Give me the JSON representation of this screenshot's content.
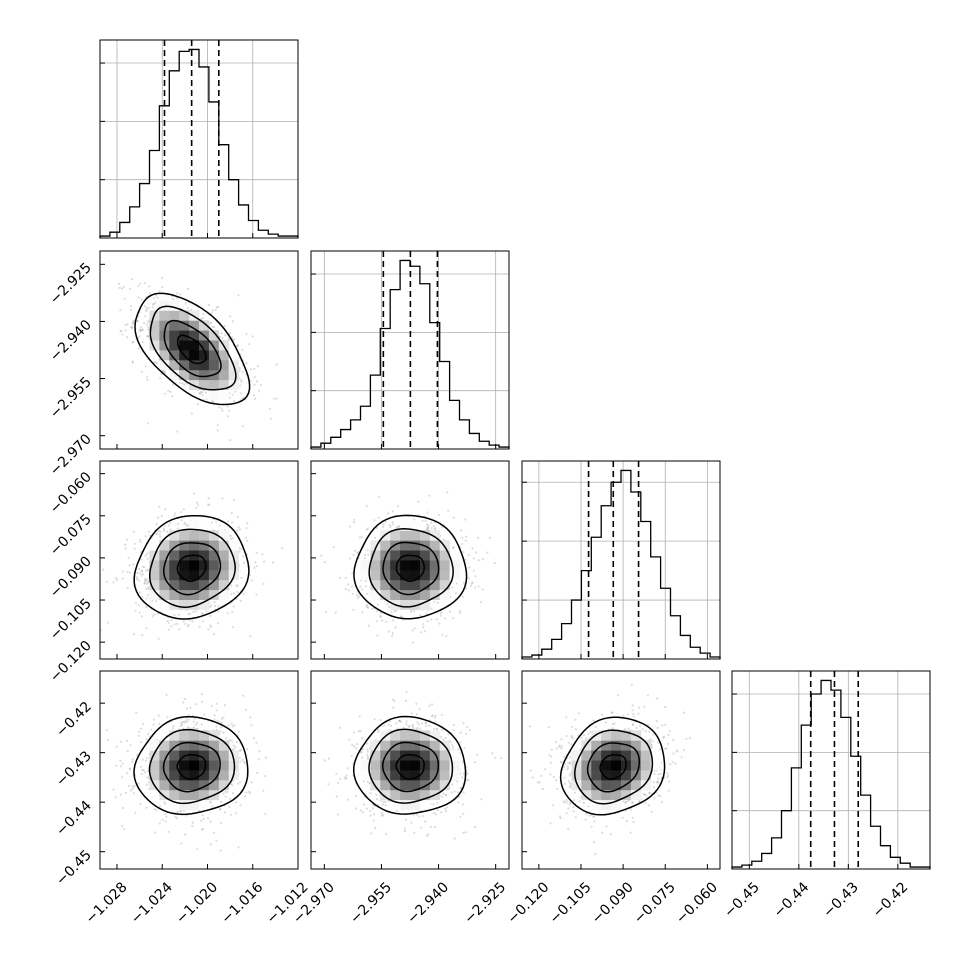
{
  "chart_data": {
    "type": "corner",
    "parameters": [
      {
        "axis_range": [
          -1.0295,
          -1.012
        ],
        "mean": -1.0214,
        "sd": 0.0025,
        "quantiles": [
          -1.0238,
          -1.0214,
          -1.019
        ],
        "ticks": [
          -1.028,
          -1.024,
          -1.02,
          -1.016,
          -1.012
        ],
        "tick_labels": [
          "−1.028",
          "−1.024",
          "−1.020",
          "−1.016",
          "−1.012"
        ],
        "hist_counts": [
          1,
          3,
          8,
          16,
          28,
          45,
          68,
          86,
          96,
          97,
          88,
          70,
          48,
          30,
          17,
          9,
          4,
          2,
          1,
          1
        ]
      },
      {
        "axis_range": [
          -2.9735,
          -2.9215
        ],
        "mean": -2.9474,
        "sd": 0.0073,
        "quantiles": [
          -2.9545,
          -2.9474,
          -2.9403
        ],
        "ticks": [
          -2.97,
          -2.955,
          -2.94,
          -2.925
        ],
        "tick_labels": [
          "−2.970",
          "−2.955",
          "−2.940",
          "−2.925"
        ],
        "hist_counts": [
          1,
          3,
          6,
          10,
          15,
          22,
          38,
          62,
          82,
          97,
          94,
          85,
          65,
          45,
          25,
          15,
          8,
          4,
          2,
          1
        ]
      },
      {
        "axis_range": [
          -0.126,
          -0.0555
        ],
        "mean": -0.0935,
        "sd": 0.0092,
        "quantiles": [
          -0.1023,
          -0.0935,
          -0.0845
        ],
        "ticks": [
          -0.12,
          -0.105,
          -0.09,
          -0.075,
          -0.06
        ],
        "tick_labels": [
          "−0.120",
          "−0.105",
          "−0.090",
          "−0.075",
          "−0.060"
        ],
        "hist_counts": [
          1,
          2,
          5,
          10,
          18,
          30,
          45,
          62,
          78,
          90,
          96,
          85,
          70,
          52,
          36,
          22,
          12,
          6,
          3,
          1
        ]
      },
      {
        "axis_range": [
          -0.4535,
          -0.4135
        ],
        "mean": -0.4328,
        "sd": 0.0049,
        "quantiles": [
          -0.4376,
          -0.4328,
          -0.428
        ],
        "ticks": [
          -0.45,
          -0.44,
          -0.43,
          -0.42
        ],
        "tick_labels": [
          "−0.45",
          "−0.44",
          "−0.43",
          "−0.42"
        ],
        "hist_counts": [
          1,
          2,
          4,
          8,
          16,
          30,
          52,
          74,
          90,
          97,
          92,
          78,
          58,
          38,
          22,
          12,
          6,
          3,
          1,
          1
        ]
      }
    ],
    "correlations": [
      [
        1,
        -0.55,
        0.1,
        0.05
      ],
      [
        -0.55,
        1,
        0.0,
        0.0
      ],
      [
        0.1,
        0.0,
        1,
        0.15
      ],
      [
        0.05,
        0.0,
        0.15,
        1
      ]
    ],
    "contour_levels_sigma": [
      0.5,
      1.0,
      1.5,
      2.0
    ],
    "histogram_bins": 20,
    "grid": true,
    "colors": {
      "line": "#000000",
      "scatter": "#9a9a9a",
      "grid": "#b0b0b0"
    }
  }
}
